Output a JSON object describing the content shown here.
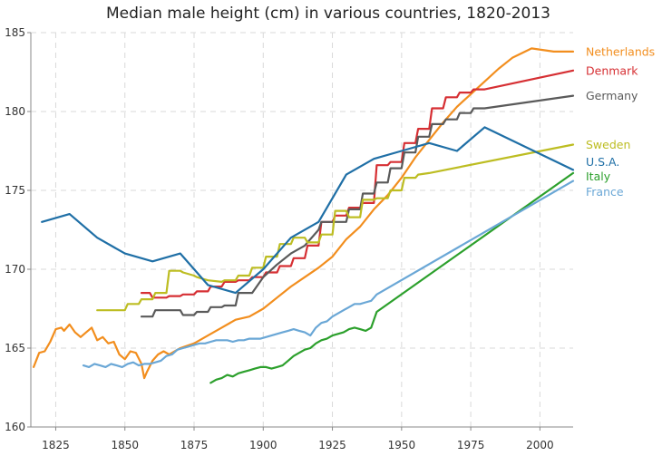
{
  "chart_data": {
    "type": "line",
    "title": "Median male height (cm) in various countries, 1820-2013",
    "xlabel": "",
    "ylabel": "",
    "xlim": [
      1816,
      2012
    ],
    "ylim": [
      160,
      185
    ],
    "x_ticks": [
      1825,
      1850,
      1875,
      1900,
      1925,
      1950,
      1975,
      2000
    ],
    "y_ticks": [
      160,
      165,
      170,
      175,
      180,
      185
    ],
    "grid": true,
    "legend_placement": "right of lines, inline labels",
    "series": [
      {
        "name": "Netherlands",
        "color": "#f28e1e",
        "x": [
          1817,
          1819,
          1821,
          1823,
          1825,
          1827,
          1828,
          1830,
          1832,
          1834,
          1836,
          1838,
          1840,
          1842,
          1844,
          1846,
          1848,
          1850,
          1852,
          1854,
          1856,
          1857,
          1858,
          1860,
          1862,
          1864,
          1866,
          1868,
          1870,
          1875,
          1880,
          1885,
          1890,
          1895,
          1900,
          1905,
          1910,
          1915,
          1920,
          1925,
          1930,
          1935,
          1940,
          1945,
          1950,
          1955,
          1960,
          1965,
          1970,
          1975,
          1980,
          1985,
          1990,
          1997,
          2005,
          2012
        ],
        "y": [
          163.8,
          164.7,
          164.8,
          165.4,
          166.2,
          166.3,
          166.1,
          166.5,
          166.0,
          165.7,
          166.0,
          166.3,
          165.5,
          165.7,
          165.3,
          165.4,
          164.6,
          164.3,
          164.8,
          164.7,
          164.0,
          163.1,
          163.5,
          164.2,
          164.6,
          164.8,
          164.6,
          164.8,
          165.0,
          165.3,
          165.8,
          166.3,
          166.8,
          167.0,
          167.5,
          168.2,
          168.9,
          169.5,
          170.1,
          170.8,
          171.9,
          172.7,
          173.8,
          174.7,
          175.8,
          177.1,
          178.2,
          179.3,
          180.3,
          181.1,
          181.9,
          182.7,
          183.4,
          184.0,
          183.8,
          183.8
        ]
      },
      {
        "name": "Denmark",
        "color": "#d62f33",
        "x": [
          1856,
          1859,
          1860,
          1865,
          1866,
          1870,
          1871,
          1875,
          1876,
          1880,
          1881,
          1885,
          1886,
          1890,
          1891,
          1895,
          1896,
          1900,
          1901,
          1905,
          1906,
          1910,
          1911,
          1915,
          1916,
          1920,
          1921,
          1925,
          1926,
          1930,
          1931,
          1935,
          1936,
          1940,
          1941,
          1945,
          1946,
          1950,
          1951,
          1955,
          1956,
          1960,
          1961,
          1965,
          1966,
          1970,
          1971,
          1975,
          1976,
          1980,
          2012
        ],
        "y": [
          168.5,
          168.5,
          168.2,
          168.2,
          168.3,
          168.3,
          168.4,
          168.4,
          168.6,
          168.6,
          168.9,
          168.9,
          169.2,
          169.2,
          169.3,
          169.3,
          169.5,
          169.5,
          169.8,
          169.8,
          170.2,
          170.2,
          170.7,
          170.7,
          171.5,
          171.5,
          173.0,
          173.0,
          173.4,
          173.4,
          173.9,
          173.9,
          174.2,
          174.2,
          176.6,
          176.6,
          176.8,
          176.8,
          178.0,
          178.0,
          178.9,
          178.9,
          180.2,
          180.2,
          180.9,
          180.9,
          181.2,
          181.2,
          181.4,
          181.4,
          182.6
        ]
      },
      {
        "name": "Germany",
        "color": "#5a5a5a",
        "x": [
          1856,
          1860,
          1861,
          1865,
          1866,
          1870,
          1871,
          1875,
          1876,
          1880,
          1881,
          1885,
          1886,
          1890,
          1891,
          1895,
          1896,
          1900,
          1905,
          1910,
          1915,
          1920,
          1921,
          1925,
          1926,
          1930,
          1931,
          1935,
          1936,
          1940,
          1941,
          1945,
          1946,
          1950,
          1951,
          1955,
          1956,
          1960,
          1961,
          1965,
          1966,
          1970,
          1971,
          1975,
          1976,
          1980,
          2012
        ],
        "y": [
          167.0,
          167.0,
          167.4,
          167.4,
          167.4,
          167.4,
          167.1,
          167.1,
          167.3,
          167.3,
          167.6,
          167.6,
          167.7,
          167.7,
          168.5,
          168.5,
          168.5,
          169.5,
          170.3,
          171.0,
          171.5,
          172.5,
          173.0,
          173.0,
          173.0,
          173.0,
          173.8,
          173.8,
          174.8,
          174.8,
          175.5,
          175.5,
          176.4,
          176.4,
          177.4,
          177.4,
          178.4,
          178.4,
          179.2,
          179.2,
          179.5,
          179.5,
          179.9,
          179.9,
          180.2,
          180.2,
          181.0
        ]
      },
      {
        "name": "Sweden",
        "color": "#bdbd22",
        "x": [
          1840,
          1845,
          1850,
          1851,
          1855,
          1856,
          1860,
          1861,
          1865,
          1866,
          1870,
          1871,
          1875,
          1876,
          1880,
          1885,
          1886,
          1890,
          1891,
          1895,
          1896,
          1900,
          1901,
          1905,
          1906,
          1910,
          1911,
          1915,
          1916,
          1920,
          1921,
          1925,
          1926,
          1930,
          1931,
          1935,
          1936,
          1940,
          1941,
          1945,
          1946,
          1950,
          1951,
          1955,
          1956,
          1960,
          2012
        ],
        "y": [
          167.4,
          167.4,
          167.4,
          167.8,
          167.8,
          168.1,
          168.1,
          168.5,
          168.5,
          169.9,
          169.9,
          169.8,
          169.6,
          169.5,
          169.3,
          169.2,
          169.3,
          169.3,
          169.6,
          169.6,
          170.1,
          170.1,
          170.8,
          170.8,
          171.6,
          171.6,
          172.0,
          172.0,
          171.7,
          171.7,
          172.2,
          172.2,
          173.7,
          173.7,
          173.3,
          173.3,
          174.4,
          174.4,
          174.5,
          174.5,
          175.0,
          175.0,
          175.8,
          175.8,
          176.0,
          176.1,
          177.9
        ]
      },
      {
        "name": "U.S.A.",
        "color": "#1f6fa6",
        "x": [
          1820,
          1830,
          1840,
          1850,
          1860,
          1870,
          1880,
          1890,
          1900,
          1910,
          1920,
          1930,
          1940,
          1950,
          1960,
          1970,
          1980,
          2012
        ],
        "y": [
          173.0,
          173.5,
          172.0,
          171.0,
          170.5,
          171.0,
          169.0,
          168.5,
          170.0,
          172.0,
          173.0,
          176.0,
          177.0,
          177.5,
          178.0,
          177.5,
          179.0,
          176.3
        ]
      },
      {
        "name": "Italy",
        "color": "#2ca02c",
        "x": [
          1881,
          1883,
          1885,
          1887,
          1889,
          1891,
          1893,
          1895,
          1897,
          1899,
          1901,
          1903,
          1905,
          1907,
          1909,
          1911,
          1913,
          1915,
          1917,
          1919,
          1921,
          1923,
          1925,
          1927,
          1929,
          1931,
          1933,
          1935,
          1937,
          1939,
          1941,
          2012
        ],
        "y": [
          162.8,
          163.0,
          163.1,
          163.3,
          163.2,
          163.4,
          163.5,
          163.6,
          163.7,
          163.8,
          163.8,
          163.7,
          163.8,
          163.9,
          164.2,
          164.5,
          164.7,
          164.9,
          165.0,
          165.3,
          165.5,
          165.6,
          165.8,
          165.9,
          166.0,
          166.2,
          166.3,
          166.2,
          166.1,
          166.3,
          167.3,
          176.1
        ]
      },
      {
        "name": "France",
        "color": "#6aa7d6",
        "x": [
          1835,
          1837,
          1839,
          1841,
          1843,
          1845,
          1847,
          1849,
          1851,
          1853,
          1855,
          1857,
          1859,
          1861,
          1863,
          1865,
          1867,
          1869,
          1871,
          1873,
          1875,
          1877,
          1879,
          1881,
          1883,
          1885,
          1887,
          1889,
          1891,
          1893,
          1895,
          1897,
          1899,
          1901,
          1903,
          1905,
          1907,
          1909,
          1911,
          1913,
          1915,
          1917,
          1919,
          1921,
          1923,
          1925,
          1927,
          1929,
          1931,
          1933,
          1935,
          1937,
          1939,
          1941,
          2012
        ],
        "y": [
          163.9,
          163.8,
          164.0,
          163.9,
          163.8,
          164.0,
          163.9,
          163.8,
          164.0,
          164.1,
          163.9,
          164.0,
          164.0,
          164.1,
          164.2,
          164.5,
          164.6,
          164.9,
          165.0,
          165.1,
          165.2,
          165.3,
          165.3,
          165.4,
          165.5,
          165.5,
          165.5,
          165.4,
          165.5,
          165.5,
          165.6,
          165.6,
          165.6,
          165.7,
          165.8,
          165.9,
          166.0,
          166.1,
          166.2,
          166.1,
          166.0,
          165.8,
          166.3,
          166.6,
          166.7,
          167.0,
          167.2,
          167.4,
          167.6,
          167.8,
          167.8,
          167.9,
          168.0,
          168.4,
          175.6
        ]
      }
    ],
    "labels": [
      {
        "series": "Netherlands",
        "text": "Netherlands",
        "y": 183.8
      },
      {
        "series": "Denmark",
        "text": "Denmark",
        "y": 182.6
      },
      {
        "series": "Germany",
        "text": "Germany",
        "y": 181.0
      },
      {
        "series": "Sweden",
        "text": "Sweden",
        "y": 177.9
      },
      {
        "series": "U.S.A.",
        "text": "U.S.A.",
        "y": 176.8
      },
      {
        "series": "Italy",
        "text": "Italy",
        "y": 175.9
      },
      {
        "series": "France",
        "text": "France",
        "y": 174.9
      }
    ]
  }
}
